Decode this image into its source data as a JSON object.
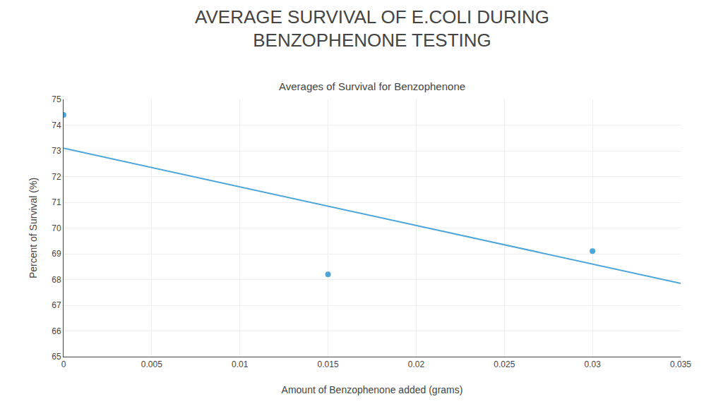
{
  "chart_data": {
    "type": "scatter",
    "title": "AVERAGE SURVIVAL OF E.COLI DURING\nBENZOPHENONE TESTING",
    "subtitle": "Averages of Survival for Benzophenone",
    "x_label": "Amount of Benzophenone added (grams)",
    "y_label": "Percent of Survival (%)",
    "series": [
      {
        "type": "scatter",
        "x": [
          0,
          0.015,
          0.03
        ],
        "values": [
          74.4,
          68.2,
          69.1
        ],
        "color": "#4da6d9"
      },
      {
        "type": "line",
        "x": [
          0,
          0.035
        ],
        "values": [
          73.1,
          67.85
        ],
        "color": "#4da6d9"
      }
    ],
    "xlim": [
      0,
      0.035
    ],
    "ylim": [
      65,
      75
    ],
    "xticks": [
      0,
      0.005,
      0.01,
      0.015,
      0.02,
      0.025,
      0.03,
      0.035
    ],
    "yticks": [
      65,
      66,
      67,
      68,
      69,
      70,
      71,
      72,
      73,
      74,
      75
    ],
    "grid": true
  }
}
